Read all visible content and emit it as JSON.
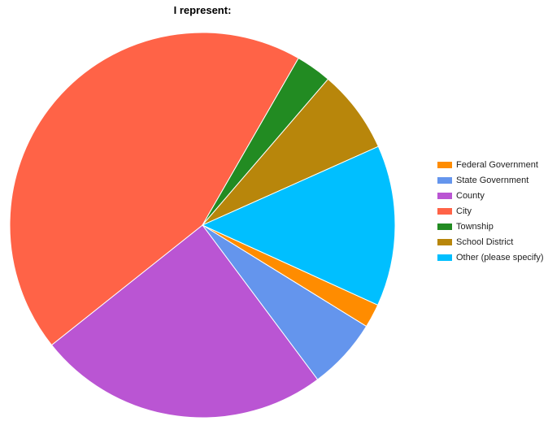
{
  "chart_data": {
    "type": "pie",
    "title": "I represent:",
    "legend_position": "right",
    "slices": [
      {
        "label": "Federal Government",
        "value": 2.0,
        "color": "#FF8C00"
      },
      {
        "label": "State Government",
        "value": 6.0,
        "color": "#6495ED"
      },
      {
        "label": "County",
        "value": 24.5,
        "color": "#BA55D3"
      },
      {
        "label": "City",
        "value": 44.0,
        "color": "#FF6347"
      },
      {
        "label": "Township",
        "value": 3.0,
        "color": "#228B22"
      },
      {
        "label": "School District",
        "value": 7.0,
        "color": "#B8860B"
      },
      {
        "label": "Other (please specify)",
        "value": 13.5,
        "color": "#00BFFF"
      }
    ]
  }
}
